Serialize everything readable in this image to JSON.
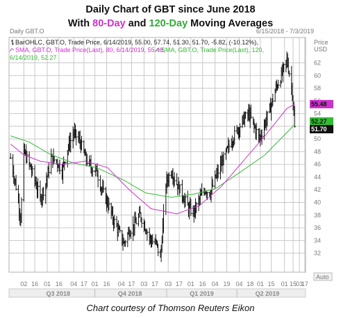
{
  "title": {
    "line1": "Daily Chart of GBT since June 2018",
    "line2_pre": "With ",
    "line2_80": "80-Day",
    "line2_mid": " and ",
    "line2_120": "120-Day",
    "line2_post": " Moving Averages"
  },
  "header": {
    "symbol": "Daily GBT.O",
    "range": "6/15/2018 - 7/3/2019",
    "price_label": "Price",
    "unit_label": "USD"
  },
  "legend": {
    "ohlc": "BarOHLC, GBT.O, Trade Price, 6/14/2019, 55.00, 57.74, 51.30, 51.70, -5.82, (-10.12%),",
    "sma80": "SMA, GBT.O, Trade Price(Last),  80, 6/14/2019, 55.48,",
    "sma120_a": "SMA, GBT.O, Trade Price(Last),  120,",
    "sma120_b": "6/14/2019, 52.27"
  },
  "auto_label": "Auto",
  "credit": "Chart courtesy of Thomson Reuters Eikon",
  "colors": {
    "bars": "#111111",
    "sma80": "#cc33cc",
    "sma120": "#33bb33",
    "grid": "#c8c8c8",
    "tag_sma80_bg": "#cc33cc",
    "tag_sma120_bg": "#33bb33",
    "tag_last_bg": "#111111"
  },
  "icons": [
    "sma-line-icon",
    "ohlc-bar-icon"
  ],
  "chart_data": {
    "type": "line",
    "description_series": [
      "GBT.O daily OHLC bars",
      "SMA 80",
      "SMA 120"
    ],
    "ylim": [
      29,
      66
    ],
    "y_ticks": [
      32,
      34,
      36,
      38,
      40,
      42,
      44,
      46,
      48,
      50,
      52,
      54,
      56,
      58,
      60,
      62
    ],
    "x_tick_labels": [
      "02",
      "16",
      "01",
      "16",
      "04",
      "17",
      "01",
      "16",
      "04",
      "17",
      "03",
      "17",
      "03",
      "17",
      "01",
      "16",
      "04",
      "19",
      "04",
      "18",
      "01",
      "15",
      "01",
      "15",
      "03",
      "17"
    ],
    "quarter_labels": [
      "Q3 2018",
      "Q4 2018",
      "Q1 2019",
      "Q2 2019"
    ],
    "last_values": {
      "close": 51.7,
      "sma80": 55.48,
      "sma120": 52.27
    },
    "last_tags": [
      "55.48",
      "52.27",
      "51.70"
    ],
    "close_path": [
      {
        "d": "2018-06-15",
        "v": 47.0
      },
      {
        "d": "2018-06-22",
        "v": 42.5
      },
      {
        "d": "2018-06-28",
        "v": 37.5
      },
      {
        "d": "2018-07-02",
        "v": 48.0
      },
      {
        "d": "2018-07-09",
        "v": 46.0
      },
      {
        "d": "2018-07-16",
        "v": 43.5
      },
      {
        "d": "2018-07-23",
        "v": 40.5
      },
      {
        "d": "2018-07-30",
        "v": 43.0
      },
      {
        "d": "2018-08-06",
        "v": 47.0
      },
      {
        "d": "2018-08-13",
        "v": 46.5
      },
      {
        "d": "2018-08-20",
        "v": 45.0
      },
      {
        "d": "2018-08-27",
        "v": 48.5
      },
      {
        "d": "2018-09-04",
        "v": 51.0
      },
      {
        "d": "2018-09-12",
        "v": 49.5
      },
      {
        "d": "2018-09-19",
        "v": 47.0
      },
      {
        "d": "2018-09-26",
        "v": 45.5
      },
      {
        "d": "2018-10-03",
        "v": 45.0
      },
      {
        "d": "2018-10-10",
        "v": 42.0
      },
      {
        "d": "2018-10-17",
        "v": 40.0
      },
      {
        "d": "2018-10-24",
        "v": 37.5
      },
      {
        "d": "2018-10-31",
        "v": 35.5
      },
      {
        "d": "2018-11-07",
        "v": 33.5
      },
      {
        "d": "2018-11-14",
        "v": 35.5
      },
      {
        "d": "2018-11-21",
        "v": 36.5
      },
      {
        "d": "2018-11-28",
        "v": 38.0
      },
      {
        "d": "2018-12-05",
        "v": 36.0
      },
      {
        "d": "2018-12-12",
        "v": 34.0
      },
      {
        "d": "2018-12-19",
        "v": 33.5
      },
      {
        "d": "2018-12-24",
        "v": 31.0
      },
      {
        "d": "2018-12-31",
        "v": 43.0
      },
      {
        "d": "2019-01-07",
        "v": 45.0
      },
      {
        "d": "2019-01-14",
        "v": 43.0
      },
      {
        "d": "2019-01-22",
        "v": 41.0
      },
      {
        "d": "2019-01-29",
        "v": 39.0
      },
      {
        "d": "2019-02-05",
        "v": 38.5
      },
      {
        "d": "2019-02-12",
        "v": 40.5
      },
      {
        "d": "2019-02-19",
        "v": 42.0
      },
      {
        "d": "2019-02-26",
        "v": 41.5
      },
      {
        "d": "2019-03-05",
        "v": 44.0
      },
      {
        "d": "2019-03-12",
        "v": 46.0
      },
      {
        "d": "2019-03-19",
        "v": 48.0
      },
      {
        "d": "2019-03-26",
        "v": 50.0
      },
      {
        "d": "2019-04-02",
        "v": 51.5
      },
      {
        "d": "2019-04-09",
        "v": 53.0
      },
      {
        "d": "2019-04-16",
        "v": 54.0
      },
      {
        "d": "2019-04-23",
        "v": 52.0
      },
      {
        "d": "2019-04-30",
        "v": 50.0
      },
      {
        "d": "2019-05-07",
        "v": 52.5
      },
      {
        "d": "2019-05-14",
        "v": 55.0
      },
      {
        "d": "2019-05-21",
        "v": 58.0
      },
      {
        "d": "2019-05-28",
        "v": 60.0
      },
      {
        "d": "2019-06-04",
        "v": 62.5
      },
      {
        "d": "2019-06-07",
        "v": 60.5
      },
      {
        "d": "2019-06-11",
        "v": 57.5
      },
      {
        "d": "2019-06-14",
        "v": 51.7
      }
    ],
    "sma80_path": [
      {
        "d": "2018-06-15",
        "v": 49.2
      },
      {
        "d": "2018-07-02",
        "v": 47.5
      },
      {
        "d": "2018-07-23",
        "v": 46.5
      },
      {
        "d": "2018-08-20",
        "v": 46.0
      },
      {
        "d": "2018-09-19",
        "v": 46.5
      },
      {
        "d": "2018-10-17",
        "v": 45.5
      },
      {
        "d": "2018-11-14",
        "v": 42.0
      },
      {
        "d": "2018-12-12",
        "v": 39.0
      },
      {
        "d": "2019-01-14",
        "v": 38.2
      },
      {
        "d": "2019-02-12",
        "v": 39.5
      },
      {
        "d": "2019-03-12",
        "v": 42.5
      },
      {
        "d": "2019-04-09",
        "v": 46.5
      },
      {
        "d": "2019-05-07",
        "v": 50.5
      },
      {
        "d": "2019-06-04",
        "v": 54.8
      },
      {
        "d": "2019-06-14",
        "v": 55.48
      }
    ],
    "sma120_path": [
      {
        "d": "2018-06-15",
        "v": 50.5
      },
      {
        "d": "2018-07-09",
        "v": 49.5
      },
      {
        "d": "2018-08-06",
        "v": 47.5
      },
      {
        "d": "2018-09-04",
        "v": 46.2
      },
      {
        "d": "2018-10-03",
        "v": 45.5
      },
      {
        "d": "2018-11-07",
        "v": 43.5
      },
      {
        "d": "2018-12-05",
        "v": 41.5
      },
      {
        "d": "2019-01-07",
        "v": 40.8
      },
      {
        "d": "2019-02-05",
        "v": 41.3
      },
      {
        "d": "2019-03-05",
        "v": 42.2
      },
      {
        "d": "2019-04-02",
        "v": 44.5
      },
      {
        "d": "2019-05-07",
        "v": 47.5
      },
      {
        "d": "2019-06-04",
        "v": 51.0
      },
      {
        "d": "2019-06-14",
        "v": 52.27
      }
    ]
  }
}
